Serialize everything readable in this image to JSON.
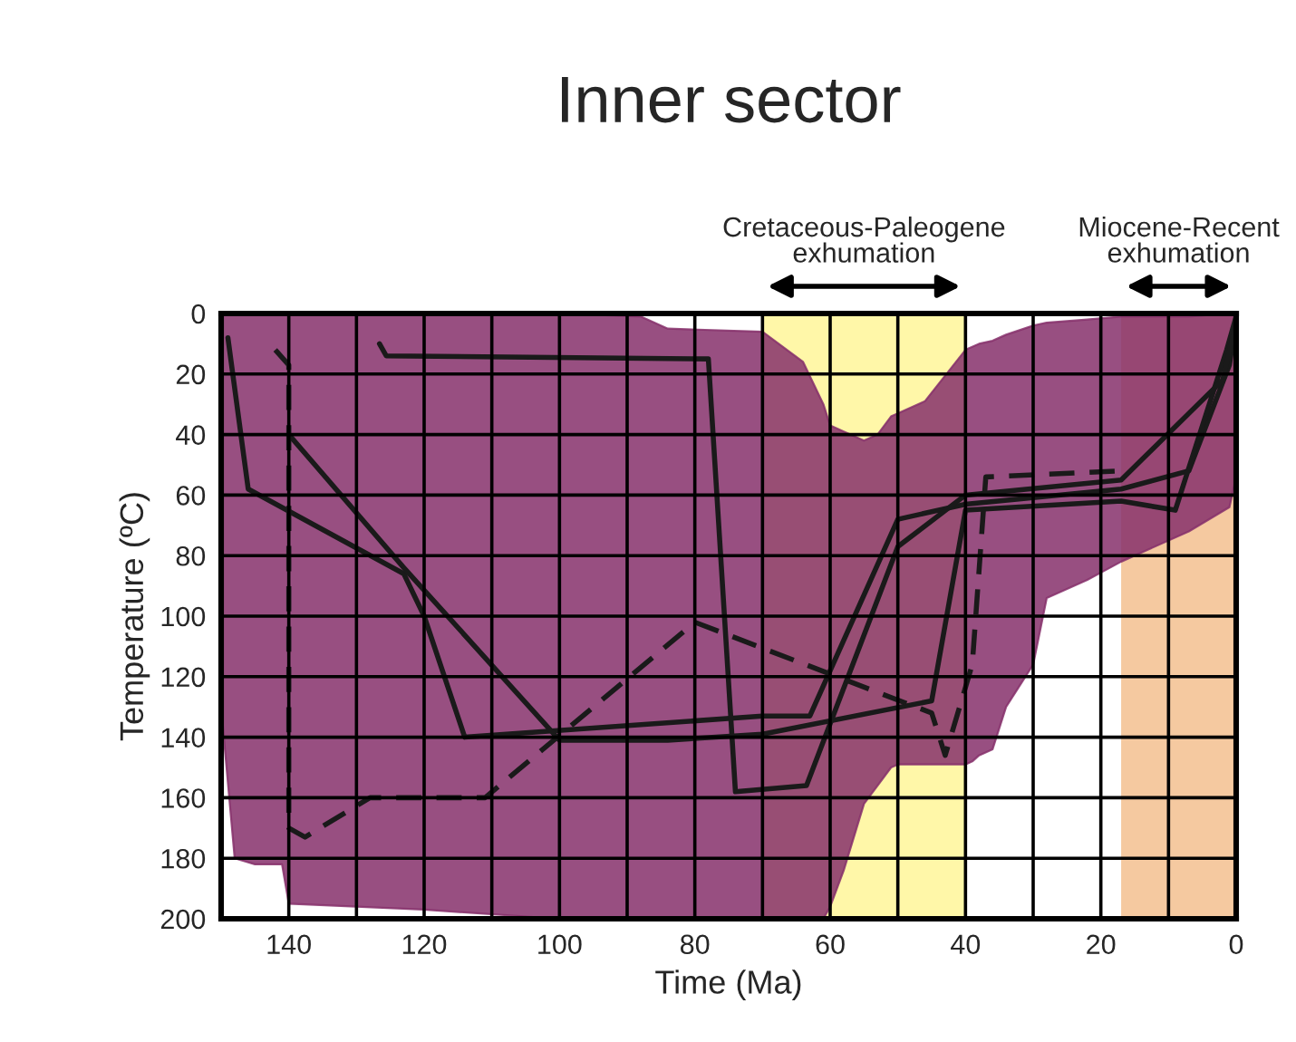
{
  "chart_data": {
    "type": "line",
    "title": "Inner sector",
    "xlabel": "Time (Ma)",
    "ylabel": "Temperature (ºC)",
    "xlim": [
      150,
      0
    ],
    "ylim": [
      200,
      0
    ],
    "xticks": [
      140,
      {
        "value": 130,
        "label": null
      },
      120,
      {
        "value": 110,
        "label": null
      },
      100,
      {
        "value": 90,
        "label": null
      },
      80,
      {
        "value": 70,
        "label": null
      },
      60,
      {
        "value": 50,
        "label": null
      },
      40,
      {
        "value": 30,
        "label": null
      },
      20,
      {
        "value": 10,
        "label": null
      },
      0
    ],
    "yticks": [
      0,
      20,
      40,
      60,
      80,
      100,
      120,
      140,
      160,
      180,
      200
    ],
    "grid": true,
    "bands": [
      {
        "axis": "x",
        "from": 70,
        "to": 40,
        "label": "Cretaceous-Paleogene\nexhumation",
        "color": "#fff7a8"
      },
      {
        "axis": "x",
        "from": 17,
        "to": 0,
        "label": "Miocene-Recent\nexhumation",
        "color": "#f5c9a0"
      }
    ],
    "series": [
      {
        "type": "area",
        "color": "#86306b",
        "x": [
          150,
          148,
          145,
          141,
          140,
          120,
          100,
          88,
          84,
          70,
          64,
          61,
          60,
          58,
          55,
          53,
          51,
          50,
          46,
          40,
          39,
          38,
          36,
          34,
          30,
          28,
          22,
          17,
          13,
          7,
          1,
          0
        ],
        "lower": [
          0,
          0,
          0,
          0,
          0,
          0,
          0,
          1,
          5,
          6,
          16,
          30,
          37,
          39,
          42,
          40,
          34,
          33,
          29,
          12,
          11,
          10,
          9,
          7,
          4,
          3,
          2,
          1,
          1,
          1,
          0,
          0
        ],
        "values": [
          null,
          null,
          null,
          null,
          null,
          null,
          null,
          null,
          null,
          null,
          null,
          null,
          null,
          null,
          null,
          null,
          null,
          null,
          null,
          null,
          null,
          null,
          null,
          null,
          null,
          null,
          null,
          null,
          null,
          null,
          null,
          null
        ],
        "upper": [
          130,
          180,
          182,
          182,
          195,
          197,
          200,
          200,
          200,
          200,
          200,
          200,
          196,
          184,
          162,
          156,
          150,
          149,
          149,
          149,
          148,
          146,
          144,
          130,
          116,
          94,
          88,
          82,
          78,
          72,
          64,
          54
        ]
      },
      {
        "color": "#1a1a1a",
        "line_style": "solid",
        "x": [
          149,
          146,
          123,
          120,
          114,
          70,
          63,
          50,
          40,
          17,
          7,
          1,
          0
        ],
        "values": [
          8,
          58,
          86,
          100,
          140,
          133,
          133,
          68,
          63,
          58,
          52,
          17,
          2
        ]
      },
      {
        "color": "#1a1a1a",
        "line_style": "solid",
        "x": [
          140,
          123,
          100,
          84,
          70,
          45,
          40,
          17,
          9,
          1.4,
          0
        ],
        "values": [
          40,
          84,
          141,
          141,
          139,
          128,
          65,
          62,
          65,
          12,
          1
        ]
      },
      {
        "color": "#1a1a1a",
        "line_style": "solid",
        "x": [
          126.6,
          125.6,
          78,
          74,
          63.5,
          50,
          40,
          17,
          2,
          0
        ],
        "values": [
          10,
          14,
          15,
          158,
          156,
          77,
          60,
          55,
          22,
          3
        ]
      },
      {
        "color": "#1a1a1a",
        "line_style": "dashed",
        "x": [
          142,
          140,
          140,
          137.6,
          128,
          111,
          80,
          45,
          43,
          39,
          37,
          17
        ],
        "values": [
          12,
          17,
          170,
          173,
          160,
          160,
          102,
          132,
          146,
          116,
          54,
          52
        ]
      }
    ]
  }
}
